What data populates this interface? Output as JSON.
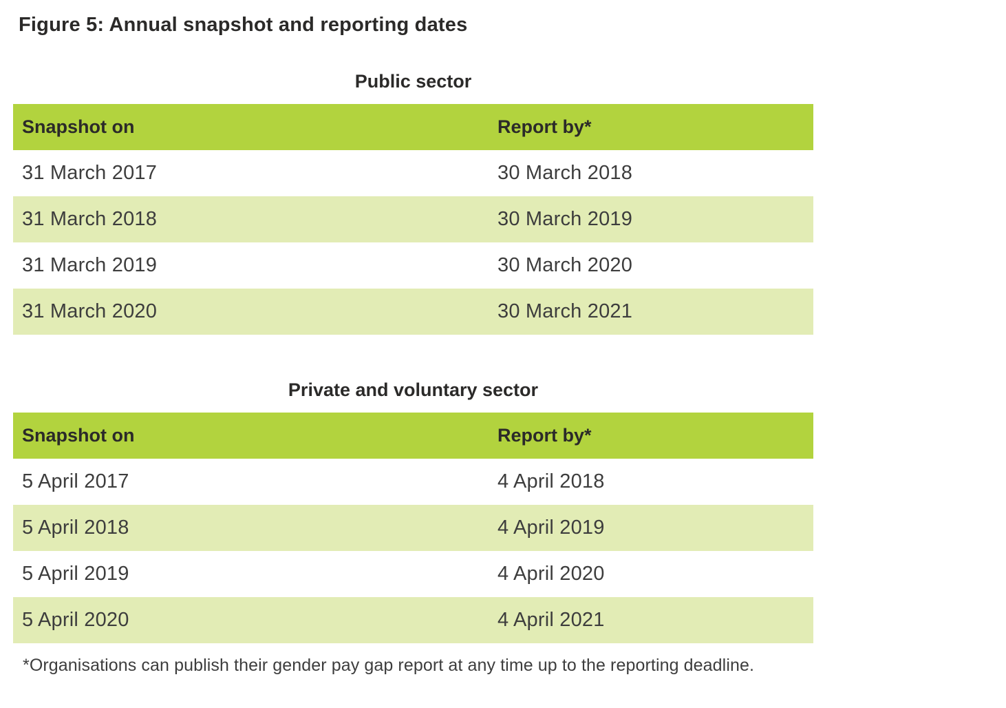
{
  "page": {
    "title": "Figure 5: Annual snapshot and reporting dates"
  },
  "colors": {
    "header_green": "#b2d33e",
    "stripe_green": "#e2ecb5",
    "heading_text": "#2b2a29",
    "body_text": "#3d3d3d"
  },
  "tables": [
    {
      "heading": "Public sector",
      "columns": [
        "Snapshot on",
        "Report by*"
      ],
      "rows": [
        [
          "31 March 2017",
          "30 March 2018"
        ],
        [
          "31 March 2018",
          "30 March 2019"
        ],
        [
          "31 March 2019",
          "30 March 2020"
        ],
        [
          "31 March 2020",
          "30 March 2021"
        ]
      ]
    },
    {
      "heading": "Private and voluntary sector",
      "columns": [
        "Snapshot on",
        "Report by*"
      ],
      "rows": [
        [
          "5 April 2017",
          "4 April 2018"
        ],
        [
          "5 April 2018",
          "4 April 2019"
        ],
        [
          "5 April 2019",
          "4 April 2020"
        ],
        [
          "5 April 2020",
          "4 April 2021"
        ]
      ]
    }
  ],
  "footnote": "*Organisations can publish their gender pay gap report at any time up to the reporting deadline."
}
